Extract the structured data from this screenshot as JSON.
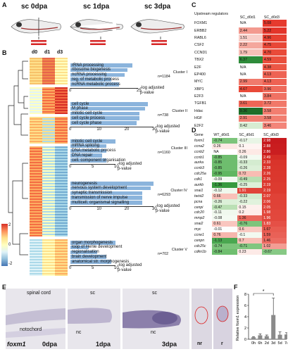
{
  "panels": {
    "A": "A",
    "B": "B",
    "C": "C",
    "D": "D",
    "E": "E",
    "F": "F"
  },
  "panelA": {
    "stages": [
      "sc 0dpa",
      "sc 1dpa",
      "sc 3dpa"
    ]
  },
  "panelB": {
    "columns": [
      "d0",
      "d1",
      "d3"
    ],
    "legend_ticks": [
      "2",
      "0",
      "-2"
    ],
    "clusters": [
      {
        "terms": [
          "rRNA processing",
          "ribosome biogenesis",
          "ncRNA processing",
          "reg. of metabolic process",
          "ncRNA metabolic process"
        ],
        "name": "Cluster I",
        "n": "n=1184",
        "axis_ticks": [
          "0",
          "25"
        ],
        "axis_label": "-log adjusted p-value",
        "values": [
          23,
          21,
          20,
          15,
          18
        ]
      },
      {
        "terms": [
          "cell cycle",
          "M phase",
          "mitotic cell cycle",
          "cell cycle process",
          "cell cycle phase"
        ],
        "name": "Cluster II",
        "n": "n=738",
        "axis_ticks": [
          "0",
          "10",
          "20",
          "30"
        ],
        "axis_label": "-log adjusted p-value",
        "values": [
          28,
          27,
          25,
          25,
          24
        ]
      },
      {
        "terms": [
          "mitotic cell cycle",
          "mRNA splicing",
          "DNA metabolic process",
          "DNA repair",
          "cell. component organisation"
        ],
        "name": "Cluster III",
        "n": "n=1160",
        "axis_ticks": [
          "0",
          "5",
          "10"
        ],
        "axis_label": "-log adjusted p-value",
        "values": [
          10,
          8,
          8,
          7,
          8
        ]
      },
      {
        "terms": [
          "neurogenesis",
          "nervous system development",
          "synaptic transmission",
          "transmission of nerve impulse",
          "multicell. organismal signalling"
        ],
        "name": "Cluster IV",
        "n": "n=6293",
        "axis_ticks": [
          "0",
          "10",
          "20",
          "30"
        ],
        "axis_label": "-log adjusted p-value",
        "values": [
          30,
          29,
          26,
          26,
          26
        ]
      },
      {
        "terms": [
          "organ morphogenesis",
          "loop of Henle development",
          "regionalisation",
          "brain development",
          "anatomical str. morphogenesis"
        ],
        "name": "Cluster V",
        "n": "n=702",
        "axis_ticks": [
          "0",
          "5",
          "10"
        ],
        "axis_label": "-log adjusted p-value",
        "values": [
          10,
          4,
          6,
          8,
          9
        ]
      }
    ]
  },
  "panelC": {
    "header": [
      "Upstream regulators",
      "SC_d0d1",
      "SC_d0d3"
    ],
    "rows": [
      [
        "FOXM1",
        "N/A",
        "5.08",
        "#ffffff",
        "#e63a2e"
      ],
      [
        "ERBB2",
        "2.44",
        "5.22",
        "#f39a8f",
        "#e3342a"
      ],
      [
        "RABL6",
        "1.51",
        "4.96",
        "#f8cfc9",
        "#e74032"
      ],
      [
        "CSF2",
        "2.22",
        "4.75",
        "#f4a79d",
        "#e84737"
      ],
      [
        "CCND1",
        "1.79",
        "4.70",
        "#f7c0b8",
        "#e94a39"
      ],
      [
        "TBX2",
        "6.37",
        "4.59",
        "#2e8b3a",
        "#ea4f3d"
      ],
      [
        "E2F",
        "N/A",
        "4.38",
        "#ffffff",
        "#ec5746"
      ],
      [
        "EP400",
        "N/A",
        "4.13",
        "#ffffff",
        "#ee6253"
      ],
      [
        "MYC",
        "2.99",
        "4.13",
        "#f07a6c",
        "#ee6253"
      ],
      [
        "XBP1",
        "4.67",
        "3.96",
        "#e94a39",
        "#ef6a5b"
      ],
      [
        "E2F3",
        "N/A",
        "3.84",
        "#ffffff",
        "#f07163"
      ],
      [
        "TGFB1",
        "3.61",
        "3.72",
        "#ee6556",
        "#f17869"
      ],
      [
        "Hdac",
        "9.36",
        "3.58",
        "#1f6e2a",
        "#f27e70"
      ],
      [
        "HGF",
        "2.91",
        "3.58",
        "#f07f72",
        "#f27e70"
      ],
      [
        "E2F2",
        "0.42",
        "3.46",
        "#d7ecd2",
        "#f3857a"
      ]
    ]
  },
  "panelD": {
    "header": [
      "Gene",
      "WT_d0d1",
      "SC_d0d1",
      "SC_d0d3"
    ],
    "rows": [
      [
        "foxm1",
        "-0.74",
        "-0.17",
        "2.98",
        "#7cc47b",
        "#e9f5e6",
        "#c71a1e"
      ],
      [
        "ccna2",
        "0.26",
        "0.1",
        "2.88",
        "#fde9e5",
        "#fff4f2",
        "#c91d1f"
      ],
      [
        "ccnb2",
        "NA",
        "0.26",
        "2.86",
        "#ffffff",
        "#fde9e5",
        "#ca1e20"
      ],
      [
        "ccnb1",
        "-0.85",
        "-0.09",
        "2.49",
        "#6ebd6e",
        "#f3faf1",
        "#d52d26"
      ],
      [
        "aurka",
        "-0.85",
        "-0.33",
        "2.33",
        "#6ebd6e",
        "#d4ecd0",
        "#d9342b"
      ],
      [
        "ccnb3",
        "-0.85",
        "-0.26",
        "2.28",
        "#6ebd6e",
        "#dcf0d8",
        "#da362c"
      ],
      [
        "cdc25a",
        "-0.95",
        "0.72",
        "2.26",
        "#60b660",
        "#f8bcb3",
        "#db372d"
      ],
      [
        "cdk1",
        "-0.09",
        "-0.49",
        "2.25",
        "#f3faf1",
        "#b8dfb2",
        "#db382e"
      ],
      [
        "aurkb",
        "-1.36",
        "-0.25",
        "2.19",
        "#379a3e",
        "#ddf0d9",
        "#dd3b30"
      ],
      [
        "snai1",
        "-0.12",
        "1.91",
        "2.19",
        "#eff8ed",
        "#e0443a",
        "#dd3b30"
      ],
      [
        "twist2",
        "0.66",
        "-0.33",
        "2.07",
        "#f9c1b9",
        "#d4ecd0",
        "#e04237"
      ],
      [
        "pcna",
        "-0.26",
        "-0.22",
        "2.06",
        "#dcf0d8",
        "#e1f2dd",
        "#e04237"
      ],
      [
        "cenpi",
        "-0.47",
        "0.15",
        "2.05",
        "#bbe0b5",
        "#fef0ed",
        "#e04338"
      ],
      [
        "cdc20",
        "-0.11",
        "0.2",
        "1.98",
        "#f0f8ee",
        "#feece9",
        "#e2473c"
      ],
      [
        "mmp2",
        "-0.08",
        "1.36",
        "1.96",
        "#f4faf2",
        "#ea675c",
        "#e2483d"
      ],
      [
        "snai2",
        "0.61",
        "-0.76",
        "1.83",
        "#f9c6bf",
        "#7dc47c",
        "#e55046"
      ],
      [
        "myc",
        "-0.01",
        "0.6",
        "1.67",
        "#fdfefd",
        "#f9cac2",
        "#e85b50"
      ],
      [
        "ccne1",
        "0.76",
        "-0.1",
        "1.59",
        "#f7b6ad",
        "#f2f9f0",
        "#e96157"
      ],
      [
        "cenpn",
        "-1.13",
        "0.7",
        "1.46",
        "#4aa750",
        "#f8bfb6",
        "#ec6b61"
      ],
      [
        "cdc25c",
        "-0.74",
        "-0.71",
        "1.02",
        "#7cc47b",
        "#80c67f",
        "#f39d94"
      ],
      [
        "cdkn1b",
        "-0.84",
        "0.23",
        "-0.67",
        "#6fbe6f",
        "#fdeae7",
        "#87c985"
      ]
    ]
  },
  "panelE": {
    "labels": {
      "spinal_cord": "spinal cord",
      "notochord": "notochord",
      "sc1": "sc",
      "nc1": "nc",
      "sc3": "sc",
      "nc3": "nc",
      "gene": "foxm1",
      "t0": "0dpa",
      "t1": "1dpa",
      "t3": "3dpa",
      "nr": "nr",
      "r": "r"
    }
  },
  "panelF": {
    "chart_data": {
      "type": "bar",
      "categories": [
        "0h",
        "6h",
        "2d",
        "3d",
        "5d",
        "7d"
      ],
      "values": [
        0.35,
        0.7,
        0.55,
        4.3,
        0.8,
        0.85
      ],
      "errors": [
        0.1,
        0.25,
        0.2,
        3.0,
        0.5,
        0.3
      ],
      "ylabel": "Relative foxm1 expression",
      "yticks": [
        "0",
        "2",
        "4",
        "6",
        "8"
      ],
      "ylim": [
        0,
        8
      ],
      "annotation": "*"
    }
  }
}
